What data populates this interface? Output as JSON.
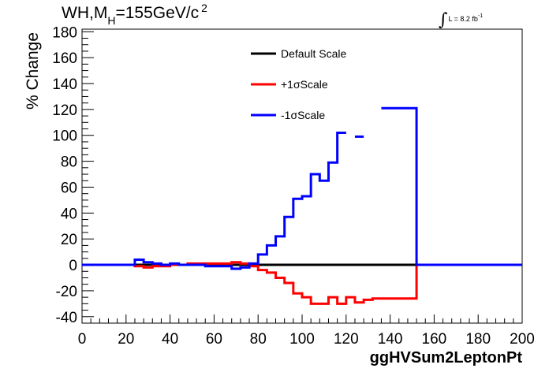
{
  "title": {
    "prefix": "WH,M",
    "subscript": "H",
    "value": "=155GeV/c",
    "superscript": "2"
  },
  "luminosity": {
    "symbol": "∫",
    "text": "L = 8.2 fb",
    "superscript": "-1"
  },
  "chart_data": {
    "type": "line",
    "style": "step",
    "xlabel": "ggHVSum2LeptonPt",
    "ylabel": "% Change",
    "xlim": [
      0,
      200
    ],
    "ylim": [
      -45,
      182
    ],
    "x_ticks": [
      0,
      20,
      40,
      60,
      80,
      100,
      120,
      140,
      160,
      180,
      200
    ],
    "y_ticks": [
      -40,
      -20,
      0,
      20,
      40,
      60,
      80,
      100,
      120,
      140,
      160,
      180
    ],
    "grid": false,
    "legend": {
      "position": "top-center",
      "entries": [
        "Default Scale",
        "+1σScale",
        "-1σScale"
      ]
    },
    "bin_edges": [
      0,
      4,
      8,
      12,
      16,
      20,
      24,
      28,
      32,
      36,
      40,
      44,
      48,
      52,
      56,
      60,
      64,
      68,
      72,
      76,
      80,
      84,
      88,
      92,
      96,
      100,
      104,
      108,
      112,
      116,
      120,
      124,
      128,
      132,
      136,
      140,
      144,
      148,
      152,
      156,
      160,
      164,
      168,
      172,
      176,
      180,
      184,
      188,
      192,
      196,
      200
    ],
    "series": [
      {
        "name": "Default Scale",
        "color": "#000000",
        "values": [
          0,
          0,
          0,
          0,
          0,
          0,
          0,
          0,
          0,
          0,
          0,
          0,
          0,
          0,
          0,
          0,
          0,
          0,
          0,
          0,
          0,
          0,
          0,
          0,
          0,
          0,
          0,
          0,
          0,
          0,
          0,
          0,
          0,
          0,
          0,
          0,
          0,
          0,
          0,
          0,
          0,
          0,
          0,
          0,
          0,
          0,
          0,
          0,
          0,
          0
        ]
      },
      {
        "name": "+1σScale",
        "color": "#ff0000",
        "values": [
          0,
          0,
          0,
          0,
          0,
          0,
          -1,
          -2,
          -1,
          -1,
          0,
          0,
          1,
          1,
          1,
          1,
          1,
          2,
          1,
          -1,
          -4,
          -6,
          -10,
          -14,
          -22,
          -25,
          -30,
          -30,
          -25,
          -30,
          -25,
          -29,
          -27,
          -26,
          -26,
          -26,
          -26,
          -26,
          0,
          0,
          0,
          0,
          0,
          0,
          0,
          0,
          0,
          0,
          0,
          0
        ]
      },
      {
        "name": "-1σScale",
        "color": "#0000ff",
        "values": [
          0,
          0,
          0,
          0,
          0,
          0,
          4,
          2,
          1,
          0,
          1,
          0,
          0,
          0,
          -1,
          -1,
          -1,
          -3,
          -2,
          1,
          8,
          15,
          22,
          37,
          51,
          53,
          70,
          65,
          79,
          102,
          null,
          99,
          null,
          null,
          121,
          121,
          121,
          121,
          0,
          0,
          0,
          0,
          0,
          0,
          0,
          0,
          0,
          0,
          0,
          0
        ]
      }
    ]
  }
}
